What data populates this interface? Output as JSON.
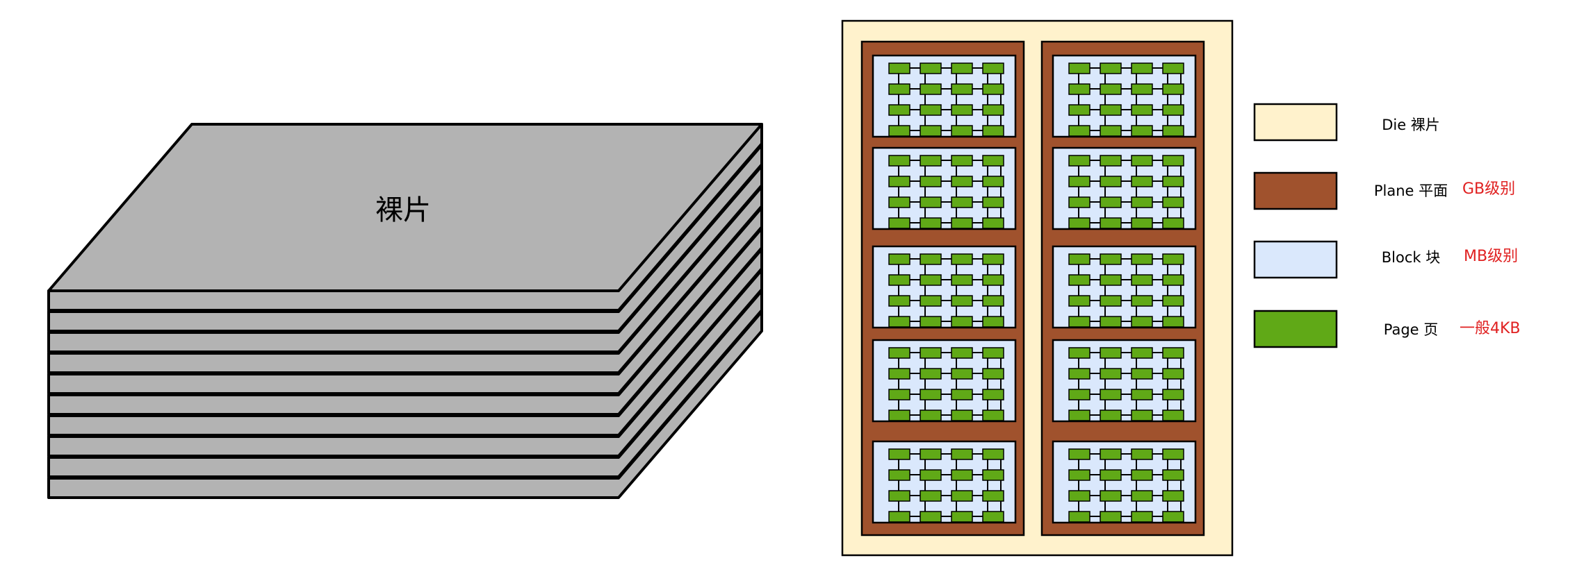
{
  "stack": {
    "label": "裸片",
    "layers": 10
  },
  "die": {
    "planes": 2,
    "blocks_per_plane": 5,
    "page_rows_per_block": 4,
    "page_cols_per_block": 4
  },
  "legend": [
    {
      "key": "die",
      "label": "Die 裸片",
      "note": "",
      "fill": "#FFF2CC"
    },
    {
      "key": "plane",
      "label": "Plane 平面",
      "note": "GB级别",
      "fill": "#A0522D"
    },
    {
      "key": "block",
      "label": "Block 块",
      "note": "MB级别",
      "fill": "#DAE8FC"
    },
    {
      "key": "page",
      "label": "Page 页",
      "note": "一般4KB",
      "fill": "#60A917"
    }
  ],
  "colors": {
    "stack_fill": "#B3B3B3",
    "stroke": "#000000",
    "note_text": "#E02020"
  }
}
